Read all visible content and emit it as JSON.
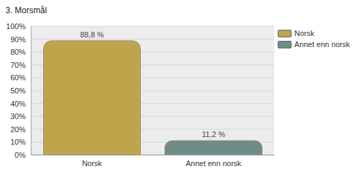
{
  "chart_data": {
    "type": "bar",
    "title": "3. Morsmål",
    "categories": [
      "Norsk",
      "Annet enn norsk"
    ],
    "values": [
      88.8,
      11.2
    ],
    "value_labels": [
      "88,8 %",
      "11,2 %"
    ],
    "colors": [
      "#c0a44c",
      "#6f8c86"
    ],
    "ylim": [
      0,
      100
    ],
    "yticks": [
      {
        "value": 0,
        "label": "0%"
      },
      {
        "value": 10,
        "label": "10%"
      },
      {
        "value": 20,
        "label": "20%"
      },
      {
        "value": 30,
        "label": "30%"
      },
      {
        "value": 40,
        "label": "40%"
      },
      {
        "value": 50,
        "label": "50%"
      },
      {
        "value": 60,
        "label": "60%"
      },
      {
        "value": 70,
        "label": "70%"
      },
      {
        "value": 80,
        "label": "80%"
      },
      {
        "value": 90,
        "label": "90%"
      },
      {
        "value": 100,
        "label": "100%"
      }
    ],
    "grid": true,
    "legend": "upper right",
    "data_labels": true
  }
}
